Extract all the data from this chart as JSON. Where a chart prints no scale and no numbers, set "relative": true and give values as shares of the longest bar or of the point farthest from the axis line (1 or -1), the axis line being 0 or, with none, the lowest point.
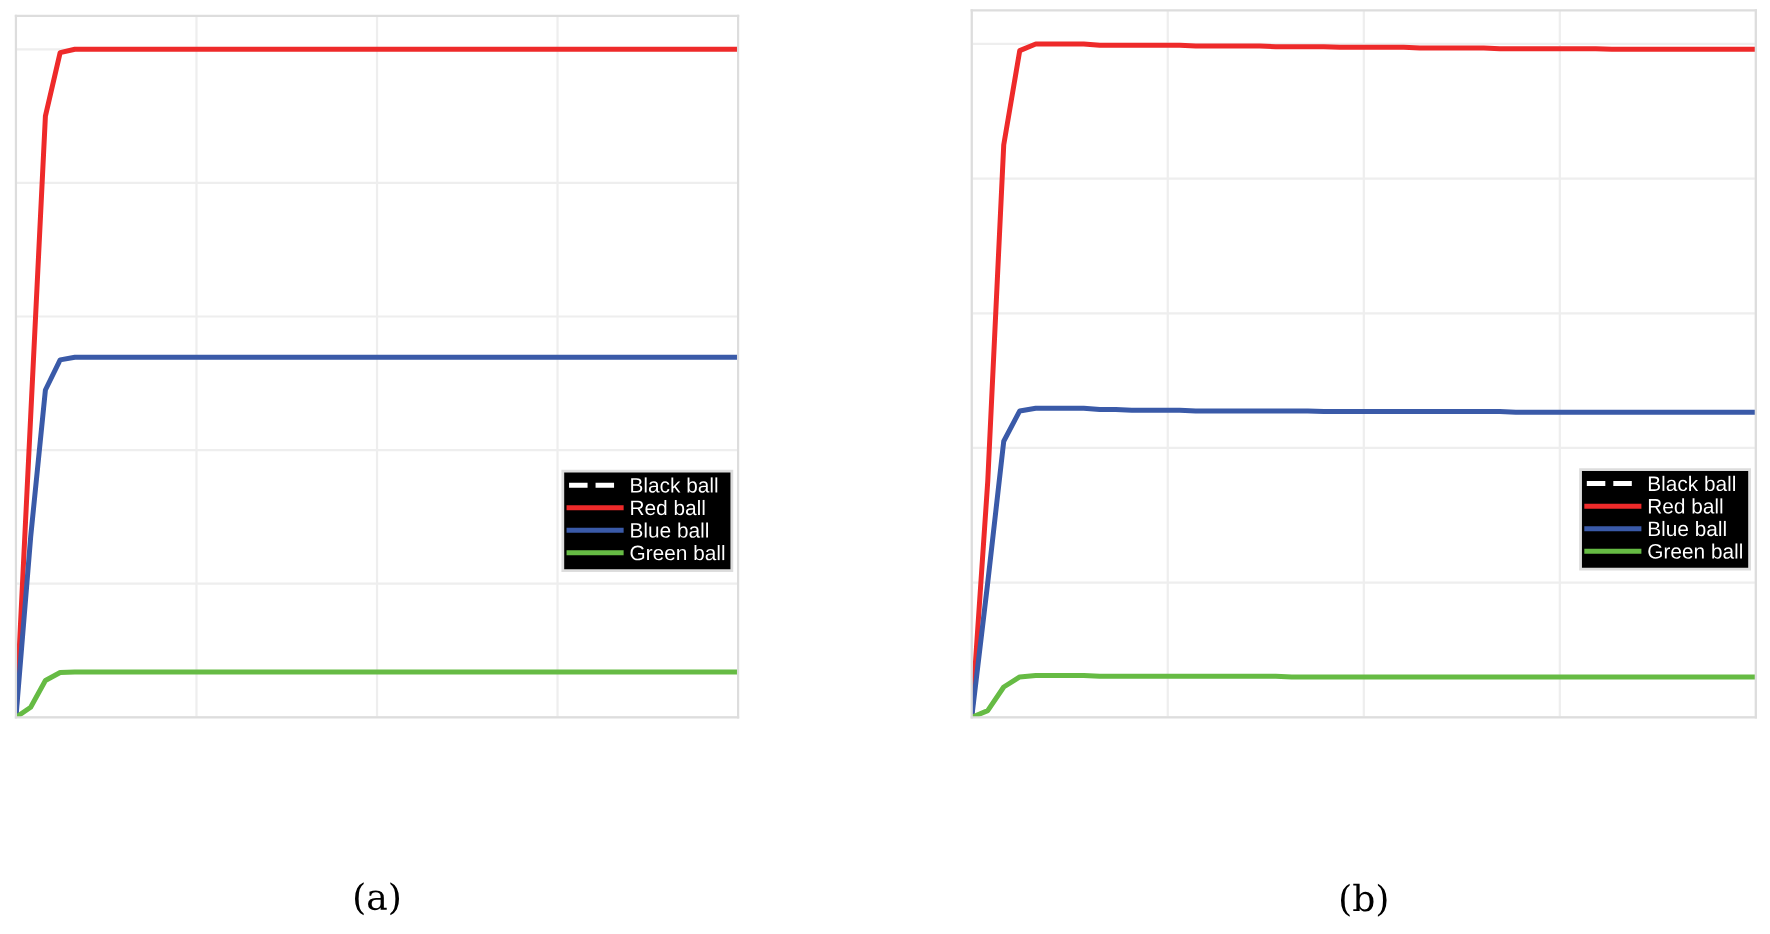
{
  "chart_data": [
    {
      "type": "line",
      "relative": true,
      "grid": true,
      "legend": "right",
      "tick_labels": false,
      "line_style": "solid",
      "annotations": [
        "(a)"
      ],
      "categories": [
        null,
        null,
        null,
        null,
        null,
        null,
        null,
        null,
        null,
        null,
        null,
        null,
        null,
        null,
        null,
        null,
        null,
        null,
        null,
        null,
        null,
        null,
        null,
        null,
        null,
        null,
        null,
        null,
        null,
        null,
        null,
        null,
        null,
        null,
        null,
        null,
        null,
        null,
        null,
        null,
        null,
        null,
        null,
        null,
        null,
        null,
        null,
        null,
        null,
        null
      ],
      "series": [
        {
          "name": "Black ball",
          "color": "#ffffff",
          "line_style": "dashed",
          "values": [
            null,
            null,
            null,
            null,
            null,
            null,
            null,
            null,
            null,
            null,
            null,
            null,
            null,
            null,
            null,
            null,
            null,
            null,
            null,
            null,
            null,
            null,
            null,
            null,
            null,
            null,
            null,
            null,
            null,
            null,
            null,
            null,
            null,
            null,
            null,
            null,
            null,
            null,
            null,
            null,
            null,
            null,
            null,
            null,
            null,
            null,
            null,
            null,
            null,
            null
          ]
        },
        {
          "name": "Red ball",
          "color": "#ee2a2a",
          "values": [
            0,
            0.45,
            0.9,
            0.995,
            1,
            1,
            1,
            1,
            1,
            1,
            1,
            1,
            1,
            1,
            1,
            1,
            1,
            1,
            1,
            1,
            1,
            1,
            1,
            1,
            1,
            1,
            1,
            1,
            1,
            1,
            1,
            1,
            1,
            1,
            1,
            1,
            1,
            1,
            1,
            1,
            1,
            1,
            1,
            1,
            1,
            1,
            1,
            1,
            1,
            1
          ]
        },
        {
          "name": "Blue ball",
          "color": "#3a5aa8",
          "values": [
            0,
            0.27,
            0.49,
            0.535,
            0.539,
            0.539,
            0.539,
            0.539,
            0.539,
            0.539,
            0.539,
            0.539,
            0.539,
            0.539,
            0.539,
            0.539,
            0.539,
            0.539,
            0.539,
            0.539,
            0.539,
            0.539,
            0.539,
            0.539,
            0.539,
            0.539,
            0.539,
            0.539,
            0.539,
            0.539,
            0.539,
            0.539,
            0.539,
            0.539,
            0.539,
            0.539,
            0.539,
            0.539,
            0.539,
            0.539,
            0.539,
            0.539,
            0.539,
            0.539,
            0.539,
            0.539,
            0.539,
            0.539,
            0.539,
            0.539
          ]
        },
        {
          "name": "Green ball",
          "color": "#66bb44",
          "values": [
            0,
            0.015,
            0.055,
            0.067,
            0.068,
            0.068,
            0.068,
            0.068,
            0.068,
            0.068,
            0.068,
            0.068,
            0.068,
            0.068,
            0.068,
            0.068,
            0.068,
            0.068,
            0.068,
            0.068,
            0.068,
            0.068,
            0.068,
            0.068,
            0.068,
            0.068,
            0.068,
            0.068,
            0.068,
            0.068,
            0.068,
            0.068,
            0.068,
            0.068,
            0.068,
            0.068,
            0.068,
            0.068,
            0.068,
            0.068,
            0.068,
            0.068,
            0.068,
            0.068,
            0.068,
            0.068,
            0.068,
            0.068,
            0.068,
            0.068
          ]
        }
      ]
    },
    {
      "type": "line",
      "relative": true,
      "grid": true,
      "legend": "right",
      "tick_labels": false,
      "line_style": "solid",
      "annotations": [
        "(b)"
      ],
      "categories": [
        null,
        null,
        null,
        null,
        null,
        null,
        null,
        null,
        null,
        null,
        null,
        null,
        null,
        null,
        null,
        null,
        null,
        null,
        null,
        null,
        null,
        null,
        null,
        null,
        null,
        null,
        null,
        null,
        null,
        null,
        null,
        null,
        null,
        null,
        null,
        null,
        null,
        null,
        null,
        null,
        null,
        null,
        null,
        null,
        null,
        null,
        null,
        null,
        null,
        null
      ],
      "series": [
        {
          "name": "Black ball",
          "color": "#ffffff",
          "line_style": "dashed",
          "values": [
            null,
            null,
            null,
            null,
            null,
            null,
            null,
            null,
            null,
            null,
            null,
            null,
            null,
            null,
            null,
            null,
            null,
            null,
            null,
            null,
            null,
            null,
            null,
            null,
            null,
            null,
            null,
            null,
            null,
            null,
            null,
            null,
            null,
            null,
            null,
            null,
            null,
            null,
            null,
            null,
            null,
            null,
            null,
            null,
            null,
            null,
            null,
            null,
            null,
            null
          ]
        },
        {
          "name": "Red ball",
          "color": "#ee2a2a",
          "values": [
            0,
            0.35,
            0.85,
            0.99,
            1,
            1,
            1,
            1,
            0.998,
            0.998,
            0.998,
            0.998,
            0.998,
            0.998,
            0.997,
            0.997,
            0.997,
            0.997,
            0.997,
            0.996,
            0.996,
            0.996,
            0.996,
            0.995,
            0.995,
            0.995,
            0.995,
            0.995,
            0.994,
            0.994,
            0.994,
            0.994,
            0.994,
            0.993,
            0.993,
            0.993,
            0.993,
            0.993,
            0.993,
            0.993,
            0.992,
            0.992,
            0.992,
            0.992,
            0.992,
            0.992,
            0.992,
            0.992,
            0.992,
            0.992
          ]
        },
        {
          "name": "Blue ball",
          "color": "#3a5aa8",
          "values": [
            0,
            0.2,
            0.41,
            0.455,
            0.459,
            0.459,
            0.459,
            0.459,
            0.457,
            0.457,
            0.456,
            0.456,
            0.456,
            0.456,
            0.455,
            0.455,
            0.455,
            0.455,
            0.455,
            0.455,
            0.455,
            0.455,
            0.454,
            0.454,
            0.454,
            0.454,
            0.454,
            0.454,
            0.454,
            0.454,
            0.454,
            0.454,
            0.454,
            0.454,
            0.453,
            0.453,
            0.453,
            0.453,
            0.453,
            0.453,
            0.453,
            0.453,
            0.453,
            0.453,
            0.453,
            0.453,
            0.453,
            0.453,
            0.453,
            0.453
          ]
        },
        {
          "name": "Green ball",
          "color": "#66bb44",
          "values": [
            0,
            0.01,
            0.045,
            0.06,
            0.062,
            0.062,
            0.062,
            0.062,
            0.061,
            0.061,
            0.061,
            0.061,
            0.061,
            0.061,
            0.061,
            0.061,
            0.061,
            0.061,
            0.061,
            0.061,
            0.06,
            0.06,
            0.06,
            0.06,
            0.06,
            0.06,
            0.06,
            0.06,
            0.06,
            0.06,
            0.06,
            0.06,
            0.06,
            0.06,
            0.06,
            0.06,
            0.06,
            0.06,
            0.06,
            0.06,
            0.06,
            0.06,
            0.06,
            0.06,
            0.06,
            0.06,
            0.06,
            0.06,
            0.06,
            0.06
          ]
        }
      ]
    }
  ]
}
